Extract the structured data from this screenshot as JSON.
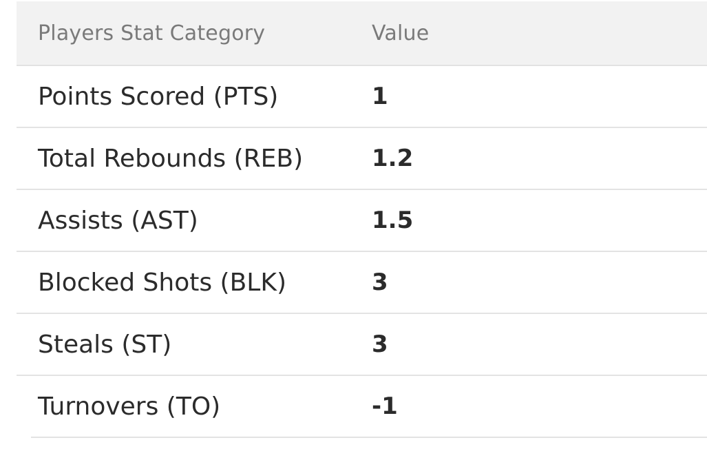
{
  "table": {
    "headers": {
      "category": "Players Stat Category",
      "value": "Value"
    },
    "rows": [
      {
        "category": "Points Scored (PTS)",
        "value": "1"
      },
      {
        "category": "Total Rebounds (REB)",
        "value": "1.2"
      },
      {
        "category": "Assists (AST)",
        "value": "1.5"
      },
      {
        "category": "Blocked Shots (BLK)",
        "value": "3"
      },
      {
        "category": "Steals (ST)",
        "value": "3"
      },
      {
        "category": "Turnovers (TO)",
        "value": "-1"
      }
    ]
  }
}
